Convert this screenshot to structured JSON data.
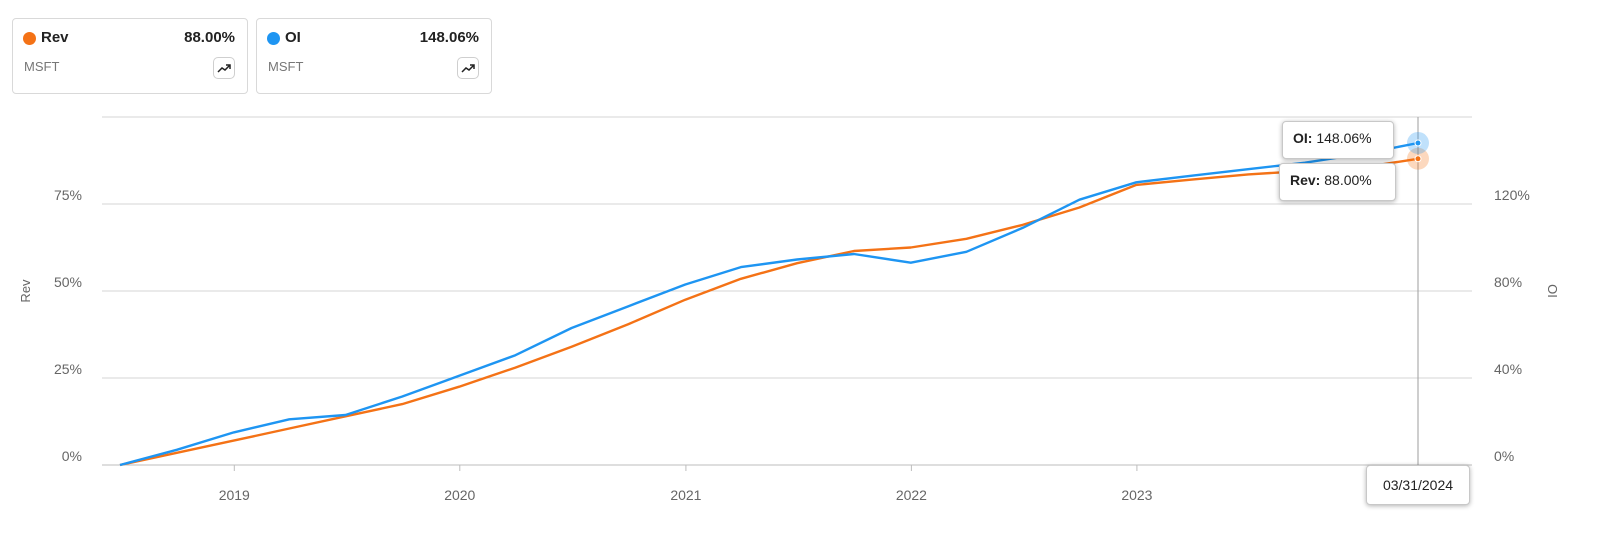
{
  "colors": {
    "rev": "#f47216",
    "oi": "#1e95f2",
    "grid": "#d4d4d4",
    "axis_text": "#666666"
  },
  "cards": [
    {
      "name": "Rev",
      "value": "88.00%",
      "ticker": "MSFT",
      "icon": "trending-up-icon"
    },
    {
      "name": "OI",
      "value": "148.06%",
      "ticker": "MSFT",
      "icon": "trending-up-icon"
    }
  ],
  "tooltip": {
    "oi_label": "OI:",
    "oi_value": "148.06%",
    "rev_label": "Rev:",
    "rev_value": "88.00%",
    "date": "03/31/2024"
  },
  "chart_data": {
    "type": "line",
    "x_start": "2018-06-30",
    "x_end": "2024-03-31",
    "x_ticks": [
      "2019",
      "2020",
      "2021",
      "2022",
      "2023"
    ],
    "y_left": {
      "label": "Rev",
      "lim": [
        0,
        100
      ],
      "ticks": [
        "0%",
        "25%",
        "50%",
        "75%"
      ],
      "tick_values": [
        0,
        25,
        50,
        75
      ]
    },
    "y_right": {
      "label": "OI",
      "lim": [
        0,
        160
      ],
      "ticks": [
        "0%",
        "40%",
        "80%",
        "120%"
      ],
      "tick_values": [
        0,
        40,
        80,
        120
      ]
    },
    "grid": true,
    "series": [
      {
        "name": "Rev",
        "axis": "left",
        "dates": [
          "2018-06-30",
          "2018-09-30",
          "2018-12-31",
          "2019-03-31",
          "2019-06-30",
          "2019-09-30",
          "2019-12-31",
          "2020-03-31",
          "2020-06-30",
          "2020-09-30",
          "2020-12-31",
          "2021-03-31",
          "2021-06-30",
          "2021-09-30",
          "2021-12-31",
          "2022-03-31",
          "2022-06-30",
          "2022-09-30",
          "2022-12-31",
          "2023-03-31",
          "2023-06-30",
          "2023-09-30",
          "2023-12-31",
          "2024-03-31"
        ],
        "values": [
          0,
          3.5,
          7.0,
          10.5,
          14.0,
          17.5,
          22.5,
          28.0,
          34.0,
          40.5,
          47.5,
          53.5,
          58.0,
          61.5,
          62.5,
          65.0,
          69.0,
          74.0,
          80.5,
          82.0,
          83.5,
          84.5,
          85.5,
          88.0
        ]
      },
      {
        "name": "OI",
        "axis": "right",
        "dates": [
          "2018-06-30",
          "2018-09-30",
          "2018-12-31",
          "2019-03-31",
          "2019-06-30",
          "2019-09-30",
          "2019-12-31",
          "2020-03-31",
          "2020-06-30",
          "2020-09-30",
          "2020-12-31",
          "2021-03-31",
          "2021-06-30",
          "2021-09-30",
          "2021-12-31",
          "2022-03-31",
          "2022-06-30",
          "2022-09-30",
          "2022-12-31",
          "2023-03-31",
          "2023-06-30",
          "2023-09-30",
          "2023-12-31",
          "2024-03-31"
        ],
        "values": [
          0,
          7.0,
          15.0,
          21.0,
          23.0,
          31.5,
          41.0,
          50.5,
          63.0,
          73.0,
          83.0,
          91.0,
          94.5,
          97.0,
          93.0,
          98.0,
          109.0,
          122.0,
          130.0,
          133.0,
          136.0,
          139.0,
          143.0,
          148.06
        ]
      }
    ]
  }
}
